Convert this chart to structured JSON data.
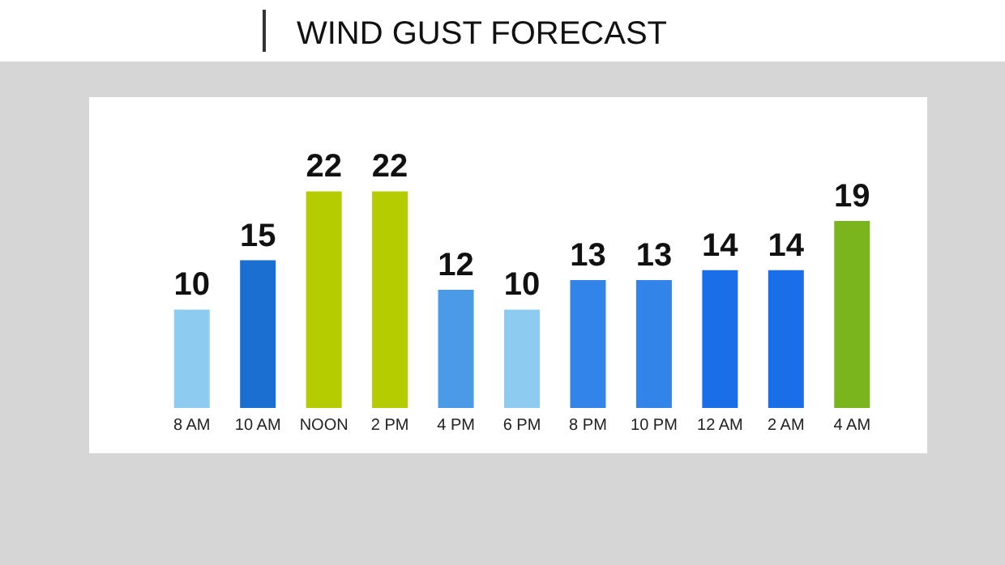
{
  "chart_data": {
    "type": "bar",
    "title": "WIND GUST FORECAST",
    "categories": [
      "8 AM",
      "10 AM",
      "NOON",
      "2 PM",
      "4 PM",
      "6 PM",
      "8 PM",
      "10 PM",
      "12 AM",
      "2 AM",
      "4 AM"
    ],
    "values": [
      10,
      15,
      22,
      22,
      12,
      10,
      13,
      13,
      14,
      14,
      19
    ],
    "colors": [
      "#8ecbf0",
      "#1a6fd0",
      "#b5cc00",
      "#b5cc00",
      "#4a9ae8",
      "#8ecbf0",
      "#3384e8",
      "#3384e8",
      "#1a6ee8",
      "#1a6ee8",
      "#7ab51d"
    ],
    "data_labels": true
  }
}
